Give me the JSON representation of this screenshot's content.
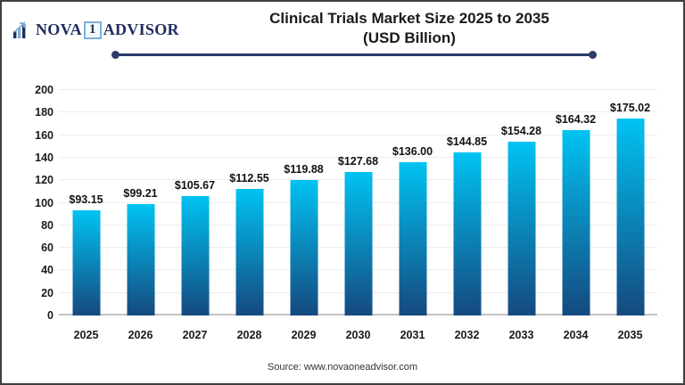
{
  "header": {
    "logo": {
      "icon": "bar-chart-growth-icon",
      "brand_part1": "NOVA",
      "brand_number": "1",
      "brand_part2": "ADVISOR"
    },
    "title_line1": "Clinical Trials Market Size 2025 to 2035",
    "title_line2": "(USD Billion)"
  },
  "chart_data": {
    "type": "bar",
    "title": "Clinical Trials Market Size 2025 to 2035 (USD Billion)",
    "categories": [
      "2025",
      "2026",
      "2027",
      "2028",
      "2029",
      "2030",
      "2031",
      "2032",
      "2033",
      "2034",
      "2035"
    ],
    "values": [
      93.15,
      99.21,
      105.67,
      112.55,
      119.88,
      127.68,
      136.0,
      144.85,
      154.28,
      164.32,
      175.02
    ],
    "value_labels": [
      "$93.15",
      "$99.21",
      "$105.67",
      "$112.55",
      "$119.88",
      "$127.68",
      "$136.00",
      "$144.85",
      "$154.28",
      "$164.32",
      "$175.02"
    ],
    "xlabel": "",
    "ylabel": "",
    "ylim": [
      0,
      200
    ],
    "yticks": [
      0,
      20,
      40,
      60,
      80,
      100,
      120,
      140,
      160,
      180,
      200
    ],
    "grid": true,
    "legend": "none",
    "bar_gradient_top": "#00c3f2",
    "bar_gradient_bottom": "#15497f"
  },
  "footer": {
    "source": "Source: www.novaoneadvisor.com"
  },
  "colors": {
    "accent_navy": "#2d3a6b",
    "logo_navy": "#222d5f",
    "logo_light_blue": "#7fb0da",
    "grid": "#ededed",
    "axis": "#c4c4c4",
    "title_text": "#1a1a1a",
    "source_text": "#333333",
    "background": "#ffffff"
  }
}
